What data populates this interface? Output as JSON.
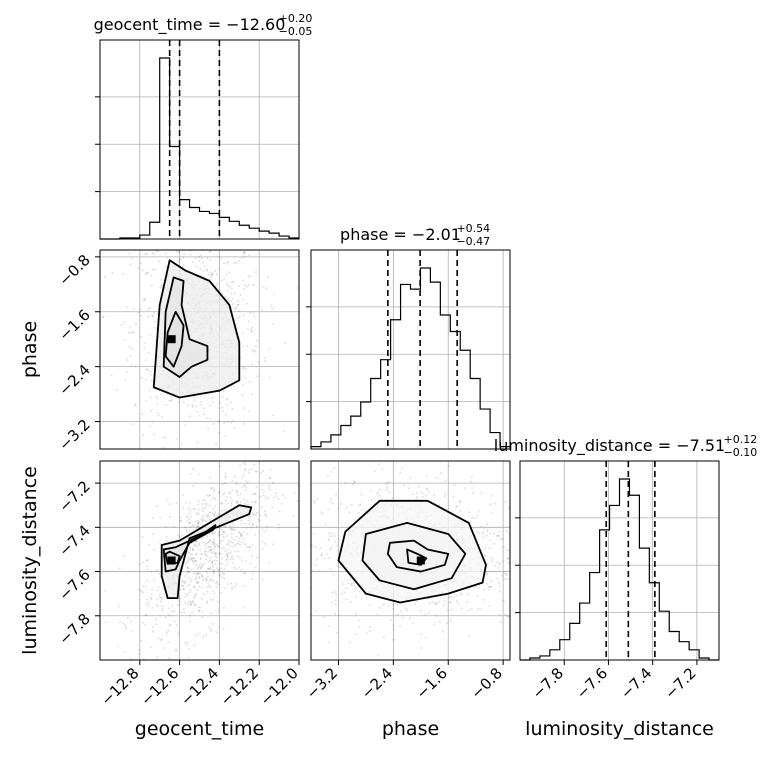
{
  "chart_data": {
    "type": "corner",
    "params": [
      "geocent_time",
      "phase",
      "luminosity_distance"
    ],
    "titles": [
      {
        "param": "geocent_time",
        "text": "geocent_time = −12.60",
        "sup": "+0.20",
        "sub": "−0.05"
      },
      {
        "param": "phase",
        "text": "phase = −2.01",
        "sup": "+0.54",
        "sub": "−0.47"
      },
      {
        "param": "luminosity_distance",
        "text": "luminosity_distance = −7.51",
        "sup": "+0.12",
        "sub": "−0.10"
      }
    ],
    "axis_labels": {
      "x": [
        "geocent_time",
        "phase",
        "luminosity_distance"
      ],
      "y": [
        "phase",
        "luminosity_distance"
      ]
    },
    "ranges": {
      "geocent_time": [
        -13.0,
        -12.0
      ],
      "phase": [
        -3.6,
        -0.7
      ],
      "luminosity_distance": [
        -8.0,
        -7.1
      ]
    },
    "ticks": {
      "geocent_time": [
        {
          "v": -12.8,
          "label": "−12.8"
        },
        {
          "v": -12.6,
          "label": "−12.6"
        },
        {
          "v": -12.4,
          "label": "−12.4"
        },
        {
          "v": -12.2,
          "label": "−12.2"
        },
        {
          "v": -12.0,
          "label": "−12.0"
        }
      ],
      "phase": [
        {
          "v": -3.2,
          "label": "−3.2"
        },
        {
          "v": -2.4,
          "label": "−2.4"
        },
        {
          "v": -1.6,
          "label": "−1.6"
        },
        {
          "v": -0.8,
          "label": "−0.8"
        }
      ],
      "luminosity_distance": [
        {
          "v": -7.8,
          "label": "−7.8"
        },
        {
          "v": -7.6,
          "label": "−7.6"
        },
        {
          "v": -7.4,
          "label": "−7.4"
        },
        {
          "v": -7.2,
          "label": "−7.2"
        }
      ]
    },
    "quantiles": {
      "geocent_time": [
        -12.65,
        -12.6,
        -12.4
      ],
      "phase": [
        -2.48,
        -2.01,
        -1.47
      ],
      "luminosity_distance": [
        -7.61,
        -7.51,
        -7.39
      ]
    },
    "histograms": {
      "geocent_time": {
        "edges": [
          -13.0,
          -12.95,
          -12.9,
          -12.85,
          -12.8,
          -12.75,
          -12.7,
          -12.65,
          -12.6,
          -12.55,
          -12.5,
          -12.45,
          -12.4,
          -12.35,
          -12.3,
          -12.25,
          -12.2,
          -12.15,
          -12.1,
          -12.05,
          -12.0
        ],
        "counts": [
          0,
          0,
          1,
          1,
          4,
          17,
          184,
          94,
          40,
          32,
          28,
          26,
          22,
          18,
          14,
          11,
          8,
          6,
          3,
          1
        ]
      },
      "phase": {
        "edges": [
          -3.6,
          -3.455,
          -3.31,
          -3.165,
          -3.02,
          -2.875,
          -2.73,
          -2.585,
          -2.44,
          -2.295,
          -2.15,
          -2.005,
          -1.86,
          -1.715,
          -1.57,
          -1.425,
          -1.28,
          -1.135,
          -0.99,
          -0.845,
          -0.7
        ],
        "counts": [
          1,
          3,
          6,
          10,
          14,
          20,
          30,
          38,
          55,
          70,
          68,
          77,
          71,
          57,
          50,
          42,
          30,
          17,
          7,
          1
        ]
      },
      "luminosity_distance": {
        "edges": [
          -8.0,
          -7.955,
          -7.91,
          -7.865,
          -7.82,
          -7.775,
          -7.73,
          -7.685,
          -7.64,
          -7.595,
          -7.55,
          -7.505,
          -7.46,
          -7.415,
          -7.37,
          -7.325,
          -7.28,
          -7.235,
          -7.19,
          -7.145,
          -7.1
        ],
        "counts": [
          0,
          1,
          2,
          5,
          10,
          18,
          28,
          43,
          64,
          76,
          89,
          81,
          55,
          38,
          24,
          14,
          9,
          5,
          1,
          0
        ]
      }
    },
    "contours": {
      "phase_vs_geocent_time": {
        "mode": [
          -12.64,
          -2.0
        ],
        "levels": [
          [
            [
              -12.62,
              -1.6
            ],
            [
              -12.66,
              -1.9
            ],
            [
              -12.67,
              -2.25
            ],
            [
              -12.63,
              -2.4
            ],
            [
              -12.59,
              -2.1
            ],
            [
              -12.58,
              -1.8
            ]
          ],
          [
            [
              -12.63,
              -1.1
            ],
            [
              -12.67,
              -1.6
            ],
            [
              -12.68,
              -2.4
            ],
            [
              -12.6,
              -2.55
            ],
            [
              -12.54,
              -2.4
            ],
            [
              -12.46,
              -2.3
            ],
            [
              -12.46,
              -2.1
            ],
            [
              -12.55,
              -2.0
            ],
            [
              -12.59,
              -1.5
            ],
            [
              -12.58,
              -1.15
            ]
          ],
          [
            [
              -12.65,
              -0.85
            ],
            [
              -12.7,
              -1.5
            ],
            [
              -12.73,
              -2.7
            ],
            [
              -12.6,
              -2.85
            ],
            [
              -12.4,
              -2.75
            ],
            [
              -12.3,
              -2.6
            ],
            [
              -12.3,
              -2.05
            ],
            [
              -12.35,
              -1.5
            ],
            [
              -12.45,
              -1.15
            ],
            [
              -12.57,
              -1.0
            ]
          ]
        ]
      },
      "luminosity_distance_vs_geocent_time": {
        "mode": [
          -12.64,
          -7.55
        ],
        "levels": [
          [
            [
              -12.67,
              -7.52
            ],
            [
              -12.65,
              -7.51
            ],
            [
              -12.6,
              -7.53
            ],
            [
              -12.61,
              -7.56
            ],
            [
              -12.66,
              -7.565
            ]
          ],
          [
            [
              -12.68,
              -7.5
            ],
            [
              -12.62,
              -7.49
            ],
            [
              -12.5,
              -7.44
            ],
            [
              -12.42,
              -7.39
            ],
            [
              -12.43,
              -7.41
            ],
            [
              -12.55,
              -7.47
            ],
            [
              -12.6,
              -7.55
            ],
            [
              -12.62,
              -7.59
            ],
            [
              -12.67,
              -7.6
            ]
          ],
          [
            [
              -12.69,
              -7.48
            ],
            [
              -12.6,
              -7.46
            ],
            [
              -12.3,
              -7.3
            ],
            [
              -12.24,
              -7.31
            ],
            [
              -12.25,
              -7.34
            ],
            [
              -12.55,
              -7.45
            ],
            [
              -12.6,
              -7.62
            ],
            [
              -12.61,
              -7.72
            ],
            [
              -12.66,
              -7.72
            ],
            [
              -12.69,
              -7.62
            ]
          ]
        ]
      },
      "luminosity_distance_vs_phase": {
        "mode": [
          -2.0,
          -7.55
        ],
        "levels": [
          [
            [
              -2.2,
              -7.5
            ],
            [
              -2.05,
              -7.52
            ],
            [
              -1.92,
              -7.54
            ],
            [
              -2.0,
              -7.57
            ],
            [
              -2.18,
              -7.56
            ]
          ],
          [
            [
              -2.45,
              -7.47
            ],
            [
              -2.1,
              -7.46
            ],
            [
              -1.9,
              -7.5
            ],
            [
              -1.6,
              -7.52
            ],
            [
              -1.65,
              -7.57
            ],
            [
              -2.0,
              -7.6
            ],
            [
              -2.35,
              -7.58
            ],
            [
              -2.48,
              -7.52
            ]
          ],
          [
            [
              -2.8,
              -7.43
            ],
            [
              -2.2,
              -7.38
            ],
            [
              -1.6,
              -7.43
            ],
            [
              -1.35,
              -7.52
            ],
            [
              -1.55,
              -7.63
            ],
            [
              -2.1,
              -7.68
            ],
            [
              -2.6,
              -7.64
            ],
            [
              -2.85,
              -7.55
            ]
          ],
          [
            [
              -3.1,
              -7.42
            ],
            [
              -2.6,
              -7.28
            ],
            [
              -1.9,
              -7.28
            ],
            [
              -1.3,
              -7.38
            ],
            [
              -1.05,
              -7.57
            ],
            [
              -1.1,
              -7.65
            ],
            [
              -1.6,
              -7.7
            ],
            [
              -2.3,
              -7.74
            ],
            [
              -2.8,
              -7.7
            ],
            [
              -3.2,
              -7.55
            ]
          ]
        ]
      }
    },
    "grid": true
  }
}
